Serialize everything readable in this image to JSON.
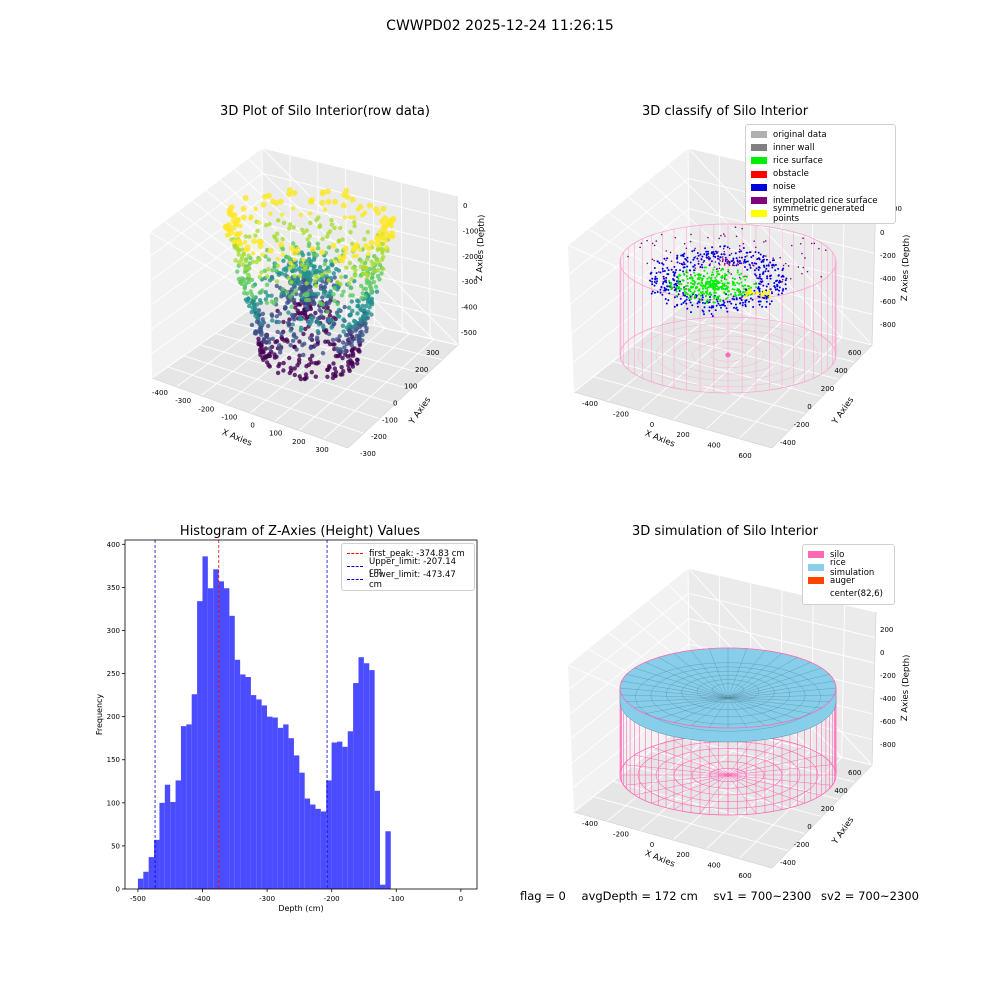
{
  "figure": {
    "title": "CWWPD02 2025-12-24 11:26:15"
  },
  "chart_data": [
    {
      "type": "scatter",
      "title": "3D Plot of Silo Interior(row data)",
      "xlabel": "X Axies",
      "ylabel": "Y Axies",
      "zlabel": "Z Axies (Depth)",
      "x_ticks": [
        "-400",
        "-300",
        "-200",
        "-100",
        "0",
        "100",
        "200",
        "300"
      ],
      "y_ticks": [
        "-300",
        "-200",
        "-100",
        "0",
        "100",
        "200",
        "300"
      ],
      "z_ticks": [
        "0",
        "-100",
        "-200",
        "-300",
        "-400",
        "-500"
      ]
    },
    {
      "type": "scatter",
      "title": "3D classify of Silo Interior",
      "xlabel": "X Axies",
      "ylabel": "Y Axies",
      "zlabel": "Z Axies (Depth)",
      "x_ticks": [
        "-400",
        "-200",
        "0",
        "200",
        "400",
        "600"
      ],
      "y_ticks": [
        "-400",
        "-200",
        "0",
        "200",
        "400",
        "600"
      ],
      "z_ticks": [
        "0",
        "-200",
        "-400",
        "-600",
        "-800"
      ],
      "z_tick_top": "00",
      "legend": [
        {
          "label": "original data",
          "color": "#b0b0b0"
        },
        {
          "label": "inner wall",
          "color": "#808080"
        },
        {
          "label": "rice surface",
          "color": "#00ee00"
        },
        {
          "label": "obstacle",
          "color": "#ff0000"
        },
        {
          "label": "noise",
          "color": "#0000dd"
        },
        {
          "label": "interpolated rice surface",
          "color": "#800080"
        },
        {
          "label": "symmetric generated points",
          "color": "#ffff00"
        }
      ]
    },
    {
      "type": "bar",
      "title": "Histogram of Z-Axies (Height) Values",
      "xlabel": "Depth (cm)",
      "ylabel": "Frequency",
      "xlim": [
        -520,
        25
      ],
      "ylim": [
        0,
        405
      ],
      "x_ticks": [
        -500,
        -400,
        -300,
        -200,
        -100,
        0
      ],
      "y_ticks": [
        0,
        50,
        100,
        150,
        200,
        250,
        300,
        350,
        400
      ],
      "bin_width": 8.33,
      "bins_start": -500,
      "values": [
        12,
        20,
        37,
        57,
        100,
        121,
        101,
        126,
        189,
        191,
        226,
        334,
        386,
        349,
        371,
        357,
        349,
        317,
        266,
        249,
        246,
        225,
        220,
        213,
        200,
        199,
        187,
        191,
        175,
        155,
        135,
        105,
        98,
        93,
        90,
        126,
        170,
        171,
        165,
        183,
        239,
        269,
        262,
        254,
        114,
        5,
        67
      ],
      "bar_color": "#4b4bff",
      "lines": [
        {
          "label": "first_peak: -374.83 cm",
          "value": -374.83,
          "color": "#ff0000"
        },
        {
          "label": "Upper_limit: -207.14 cm",
          "value": -207.14,
          "color": "#0000cc"
        },
        {
          "label": "Lower_limit: -473.47 cm",
          "value": -473.47,
          "color": "#0000cc"
        }
      ],
      "legend_position": "top-right"
    },
    {
      "type": "area",
      "title": "3D simulation of Silo Interior",
      "xlabel": "X Axies",
      "ylabel": "Y Axies",
      "zlabel": "Z Axies (Depth)",
      "x_ticks": [
        "-400",
        "-200",
        "0",
        "200",
        "400",
        "600"
      ],
      "y_ticks": [
        "-400",
        "-200",
        "0",
        "200",
        "400",
        "600"
      ],
      "z_ticks": [
        "200",
        "0",
        "-200",
        "-400",
        "-600",
        "-800"
      ],
      "legend": [
        {
          "label": "silo",
          "color": "#ff69b4"
        },
        {
          "label": "rice simulation",
          "color": "#87ceeb"
        },
        {
          "label": "auger",
          "color": "#ff4500"
        },
        {
          "label": "center(82,6)",
          "color": "#ffffff"
        }
      ]
    }
  ],
  "footer": {
    "flag": "flag = 0",
    "avg": "avgDepth = 172 cm",
    "sv1": "sv1 = 700~2300",
    "sv2": "sv2 = 700~2300"
  }
}
